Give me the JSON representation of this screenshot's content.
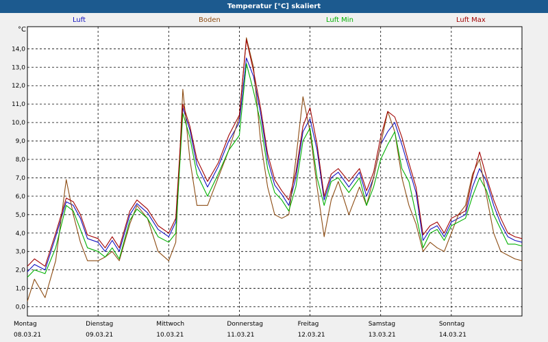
{
  "title": "Temperatur [°C] skaliert",
  "unit": "°C",
  "colors": {
    "luft": "#1010c0",
    "boden": "#8b4a10",
    "luft_min": "#00b000",
    "luft_max": "#a00000",
    "titlebar": "#1c5a8f"
  },
  "chart_data": {
    "type": "line",
    "title": "Temperatur [°C] skaliert",
    "ylabel": "°C",
    "ylim": [
      -0.5,
      15.2
    ],
    "xlim": [
      0,
      7
    ],
    "yticks": [
      "0,0",
      "1,0",
      "2,0",
      "3,0",
      "4,0",
      "5,0",
      "6,0",
      "7,0",
      "8,0",
      "9,0",
      "10,0",
      "11,0",
      "12,0",
      "13,0",
      "14,0"
    ],
    "x_days": [
      "Montag",
      "Dienstag",
      "Mittwoch",
      "Donnerstag",
      "Freitag",
      "Samstag",
      "Sonntag"
    ],
    "x_dates": [
      "08.03.21",
      "09.03.21",
      "10.03.21",
      "11.03.21",
      "12.03.21",
      "13.03.21",
      "14.03.21"
    ],
    "grid": true,
    "legend": "top",
    "series": [
      {
        "name": "Luft",
        "key": "luft",
        "x": [
          0,
          0.1,
          0.25,
          0.4,
          0.55,
          0.65,
          0.75,
          0.85,
          1.0,
          1.1,
          1.2,
          1.3,
          1.45,
          1.55,
          1.7,
          1.85,
          2.0,
          2.1,
          2.2,
          2.3,
          2.4,
          2.55,
          2.7,
          2.85,
          3.0,
          3.1,
          3.2,
          3.3,
          3.4,
          3.5,
          3.6,
          3.7,
          3.8,
          3.9,
          4.0,
          4.1,
          4.2,
          4.3,
          4.4,
          4.55,
          4.7,
          4.8,
          4.9,
          5.0,
          5.1,
          5.2,
          5.3,
          5.4,
          5.5,
          5.6,
          5.7,
          5.8,
          5.9,
          6.0,
          6.1,
          6.2,
          6.3,
          6.4,
          6.5,
          6.6,
          6.7,
          6.8,
          6.9,
          7.0
        ],
        "y": [
          1.9,
          2.3,
          2.0,
          3.8,
          5.7,
          5.5,
          4.8,
          3.7,
          3.5,
          3.0,
          3.6,
          3.0,
          5.0,
          5.6,
          5.1,
          4.2,
          3.8,
          4.6,
          10.8,
          9.6,
          7.7,
          6.5,
          7.6,
          9.0,
          10.0,
          13.5,
          12.5,
          10.5,
          8.0,
          6.6,
          6.1,
          5.5,
          7.0,
          9.5,
          10.2,
          8.5,
          5.8,
          7.0,
          7.3,
          6.5,
          7.3,
          6.0,
          7.0,
          8.8,
          9.5,
          10.0,
          8.8,
          7.5,
          6.2,
          3.6,
          4.2,
          4.4,
          3.8,
          4.6,
          4.8,
          5.0,
          6.5,
          7.5,
          6.8,
          5.5,
          4.5,
          3.8,
          3.6,
          3.5
        ]
      },
      {
        "name": "Boden",
        "key": "boden",
        "x": [
          0,
          0.1,
          0.25,
          0.4,
          0.55,
          0.65,
          0.75,
          0.85,
          1.0,
          1.1,
          1.2,
          1.3,
          1.45,
          1.55,
          1.7,
          1.85,
          2.0,
          2.1,
          2.2,
          2.3,
          2.4,
          2.55,
          2.7,
          2.85,
          3.0,
          3.1,
          3.2,
          3.3,
          3.4,
          3.5,
          3.6,
          3.7,
          3.8,
          3.9,
          4.0,
          4.1,
          4.2,
          4.3,
          4.4,
          4.55,
          4.7,
          4.8,
          4.9,
          5.0,
          5.1,
          5.2,
          5.3,
          5.4,
          5.5,
          5.6,
          5.7,
          5.8,
          5.9,
          6.0,
          6.1,
          6.2,
          6.3,
          6.4,
          6.5,
          6.6,
          6.7,
          6.8,
          6.9,
          7.0
        ],
        "y": [
          0.3,
          1.5,
          0.5,
          2.5,
          6.9,
          5.0,
          3.5,
          2.5,
          2.5,
          2.7,
          3.0,
          2.5,
          4.5,
          5.5,
          4.8,
          3.0,
          2.5,
          3.5,
          11.8,
          8.0,
          5.5,
          5.5,
          7.0,
          8.5,
          10.3,
          14.6,
          13.0,
          9.0,
          6.5,
          5.0,
          4.8,
          5.0,
          8.0,
          11.4,
          9.5,
          6.5,
          3.8,
          5.8,
          6.8,
          5.0,
          6.5,
          5.5,
          7.0,
          8.8,
          10.6,
          9.5,
          7.0,
          5.5,
          4.5,
          3.0,
          3.5,
          3.2,
          3.0,
          4.0,
          5.0,
          5.5,
          7.2,
          8.0,
          6.0,
          4.0,
          3.0,
          2.8,
          2.6,
          2.5
        ]
      },
      {
        "name": "Luft Min",
        "key": "luft_min",
        "x": [
          0,
          0.1,
          0.25,
          0.4,
          0.55,
          0.65,
          0.75,
          0.85,
          1.0,
          1.1,
          1.2,
          1.3,
          1.45,
          1.55,
          1.7,
          1.85,
          2.0,
          2.1,
          2.2,
          2.3,
          2.4,
          2.55,
          2.7,
          2.85,
          3.0,
          3.1,
          3.2,
          3.3,
          3.4,
          3.5,
          3.6,
          3.7,
          3.8,
          3.9,
          4.0,
          4.1,
          4.2,
          4.3,
          4.4,
          4.55,
          4.7,
          4.8,
          4.9,
          5.0,
          5.1,
          5.2,
          5.3,
          5.4,
          5.5,
          5.6,
          5.7,
          5.8,
          5.9,
          6.0,
          6.1,
          6.2,
          6.3,
          6.4,
          6.5,
          6.6,
          6.7,
          6.8,
          6.9,
          7.0
        ],
        "y": [
          1.6,
          2.0,
          1.8,
          3.2,
          5.5,
          5.2,
          4.2,
          3.2,
          3.0,
          2.7,
          3.2,
          2.6,
          4.7,
          5.3,
          4.8,
          3.8,
          3.5,
          4.0,
          10.5,
          9.2,
          7.2,
          6.0,
          7.2,
          8.5,
          9.3,
          13.2,
          11.7,
          10.0,
          7.5,
          6.2,
          5.8,
          5.2,
          6.5,
          9.0,
          9.7,
          7.0,
          5.5,
          6.8,
          7.0,
          6.2,
          7.0,
          5.5,
          6.5,
          8.0,
          8.8,
          9.5,
          7.5,
          6.8,
          5.0,
          3.2,
          4.0,
          4.2,
          3.6,
          4.4,
          4.6,
          4.8,
          6.0,
          7.0,
          6.3,
          5.0,
          4.2,
          3.4,
          3.4,
          3.3
        ]
      },
      {
        "name": "Luft Max",
        "key": "luft_max",
        "x": [
          0,
          0.1,
          0.25,
          0.4,
          0.55,
          0.65,
          0.75,
          0.85,
          1.0,
          1.1,
          1.2,
          1.3,
          1.45,
          1.55,
          1.7,
          1.85,
          2.0,
          2.1,
          2.2,
          2.3,
          2.4,
          2.55,
          2.7,
          2.85,
          3.0,
          3.1,
          3.2,
          3.3,
          3.4,
          3.5,
          3.6,
          3.7,
          3.8,
          3.9,
          4.0,
          4.1,
          4.2,
          4.3,
          4.4,
          4.55,
          4.7,
          4.8,
          4.9,
          5.0,
          5.1,
          5.2,
          5.3,
          5.4,
          5.5,
          5.6,
          5.7,
          5.8,
          5.9,
          6.0,
          6.1,
          6.2,
          6.3,
          6.4,
          6.5,
          6.6,
          6.7,
          6.8,
          6.9,
          7.0
        ],
        "y": [
          2.2,
          2.6,
          2.2,
          4.0,
          5.9,
          5.7,
          5.0,
          3.9,
          3.7,
          3.2,
          3.8,
          3.2,
          5.2,
          5.8,
          5.3,
          4.4,
          4.0,
          4.8,
          11.0,
          9.8,
          8.0,
          6.8,
          7.8,
          9.3,
          10.4,
          14.5,
          12.8,
          10.8,
          8.3,
          6.9,
          6.3,
          5.8,
          7.3,
          9.8,
          10.8,
          8.8,
          6.0,
          7.2,
          7.5,
          6.8,
          7.5,
          6.3,
          7.3,
          9.2,
          10.6,
          10.3,
          9.2,
          7.8,
          6.5,
          3.9,
          4.4,
          4.6,
          4.0,
          4.8,
          5.0,
          5.2,
          7.0,
          8.4,
          7.0,
          5.8,
          4.8,
          4.0,
          3.8,
          3.7
        ]
      }
    ]
  }
}
